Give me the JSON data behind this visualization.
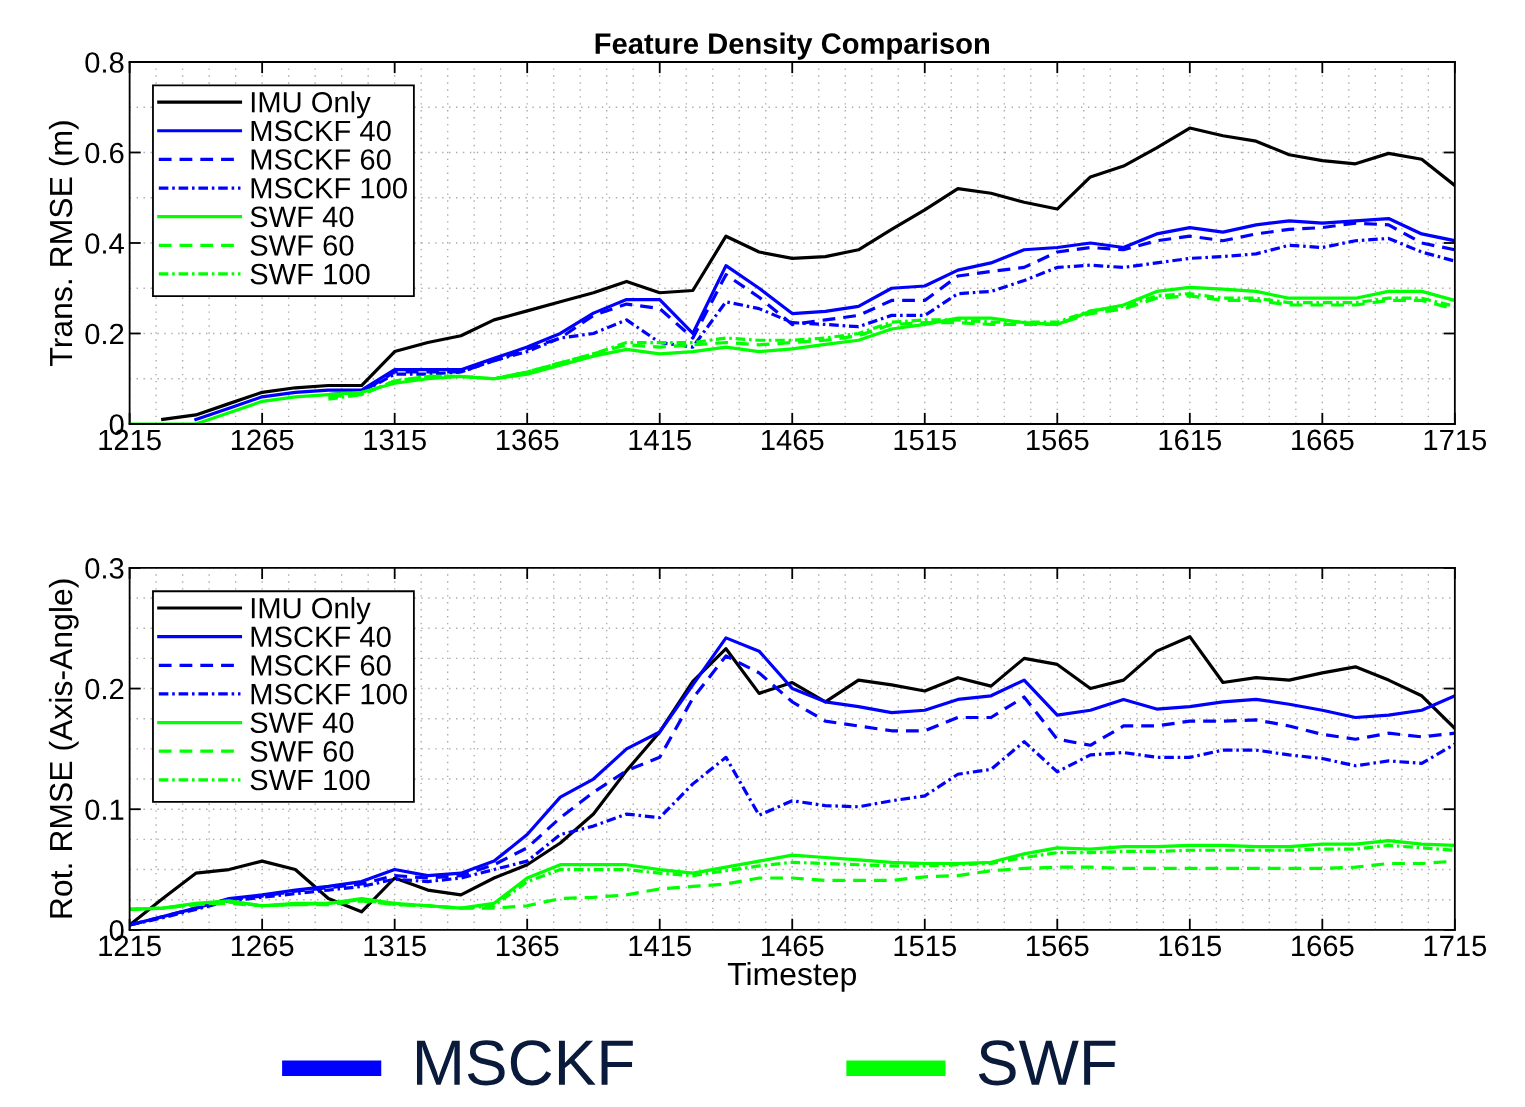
{
  "chart_data": [
    {
      "type": "line",
      "title": "Feature Density Comparison",
      "ylabel": "Trans. RMSE (m)",
      "xlim": [
        1215,
        1715
      ],
      "xticks": [
        1215,
        1265,
        1315,
        1365,
        1415,
        1465,
        1515,
        1565,
        1615,
        1665,
        1715
      ],
      "ylim": [
        0,
        0.8
      ],
      "yticks": [
        0,
        0.2,
        0.4,
        0.6,
        0.8
      ],
      "grid": true,
      "legend": "top left",
      "x": [
        1215,
        1227.5,
        1240,
        1252.5,
        1265,
        1277.5,
        1290,
        1302.5,
        1315,
        1327.5,
        1340,
        1352.5,
        1365,
        1377.5,
        1390,
        1402.5,
        1415,
        1427.5,
        1440,
        1452.5,
        1465,
        1477.5,
        1490,
        1502.5,
        1515,
        1527.5,
        1540,
        1552.5,
        1565,
        1577.5,
        1590,
        1602.5,
        1615,
        1627.5,
        1640,
        1652.5,
        1665,
        1677.5,
        1690,
        1702.5,
        1715
      ],
      "series": [
        {
          "name": "IMU Only",
          "color": "#000000",
          "line_style": "solid",
          "values": [
            null,
            0.01,
            0.02,
            0.045,
            0.07,
            0.08,
            0.085,
            0.085,
            0.16,
            0.18,
            0.195,
            0.23,
            0.25,
            0.27,
            0.29,
            0.315,
            0.29,
            0.295,
            0.415,
            0.38,
            0.366,
            0.37,
            0.385,
            0.43,
            0.473,
            0.52,
            0.51,
            0.49,
            0.475,
            0.546,
            0.57,
            0.61,
            0.654,
            0.637,
            0.625,
            0.595,
            0.582,
            0.575,
            0.598,
            0.585,
            0.527
          ]
        },
        {
          "name": "MSCKF 40",
          "color": "#0000ff",
          "line_style": "solid",
          "values": [
            null,
            null,
            0.01,
            0.035,
            0.06,
            0.07,
            0.075,
            0.075,
            0.12,
            0.12,
            0.12,
            0.145,
            0.17,
            0.2,
            0.245,
            0.275,
            0.275,
            0.2,
            0.35,
            0.3,
            0.244,
            0.249,
            0.26,
            0.3,
            0.305,
            0.34,
            0.356,
            0.385,
            0.39,
            0.4,
            0.39,
            0.42,
            0.434,
            0.424,
            0.44,
            0.449,
            0.444,
            0.449,
            0.454,
            0.42,
            0.405
          ]
        },
        {
          "name": "MSCKF 60",
          "color": "#0000ff",
          "line_style": "dashed",
          "values": [
            null,
            null,
            null,
            null,
            null,
            null,
            0.065,
            0.07,
            0.115,
            0.115,
            0.115,
            0.14,
            0.165,
            0.19,
            0.24,
            0.265,
            0.255,
            0.19,
            0.33,
            0.28,
            0.22,
            0.23,
            0.24,
            0.273,
            0.273,
            0.327,
            0.337,
            0.346,
            0.38,
            0.39,
            0.385,
            0.405,
            0.415,
            0.405,
            0.42,
            0.43,
            0.434,
            0.444,
            0.44,
            0.4,
            0.385
          ]
        },
        {
          "name": "MSCKF 100",
          "color": "#0000ff",
          "line_style": "dashdot",
          "values": [
            null,
            null,
            null,
            null,
            null,
            null,
            null,
            0.07,
            0.11,
            0.11,
            0.115,
            0.14,
            0.16,
            0.19,
            0.2,
            0.23,
            0.18,
            0.17,
            0.27,
            0.255,
            0.224,
            0.22,
            0.215,
            0.24,
            0.24,
            0.288,
            0.293,
            0.317,
            0.346,
            0.351,
            0.346,
            0.356,
            0.366,
            0.37,
            0.376,
            0.395,
            0.39,
            0.405,
            0.41,
            0.38,
            0.36
          ]
        },
        {
          "name": "SWF 40",
          "color": "#00ff00",
          "line_style": "solid",
          "values": [
            0,
            0,
            0,
            0.025,
            0.05,
            0.06,
            0.065,
            0.07,
            0.09,
            0.1,
            0.105,
            0.1,
            0.11,
            0.13,
            0.15,
            0.165,
            0.155,
            0.16,
            0.17,
            0.16,
            0.166,
            0.176,
            0.185,
            0.21,
            0.22,
            0.234,
            0.234,
            0.224,
            0.22,
            0.249,
            0.263,
            0.293,
            0.302,
            0.298,
            0.293,
            0.278,
            0.278,
            0.278,
            0.293,
            0.293,
            0.273
          ]
        },
        {
          "name": "SWF 60",
          "color": "#00ff00",
          "line_style": "dashed",
          "values": [
            null,
            null,
            null,
            null,
            null,
            null,
            0.06,
            0.065,
            0.095,
            0.105,
            0.105,
            0.1,
            0.115,
            0.135,
            0.155,
            0.175,
            0.17,
            0.175,
            0.18,
            0.175,
            0.18,
            0.185,
            0.195,
            0.22,
            0.224,
            0.224,
            0.22,
            0.22,
            0.22,
            0.244,
            0.254,
            0.278,
            0.283,
            0.273,
            0.273,
            0.263,
            0.263,
            0.263,
            0.273,
            0.273,
            0.254
          ]
        },
        {
          "name": "SWF 100",
          "color": "#00ff00",
          "line_style": "dashdot",
          "values": [
            null,
            null,
            null,
            null,
            null,
            null,
            0.055,
            0.065,
            0.095,
            0.105,
            0.105,
            0.1,
            0.115,
            0.135,
            0.155,
            0.18,
            0.18,
            0.18,
            0.19,
            0.185,
            0.185,
            0.19,
            0.2,
            0.225,
            0.23,
            0.23,
            0.225,
            0.225,
            0.225,
            0.25,
            0.26,
            0.283,
            0.288,
            0.278,
            0.278,
            0.268,
            0.268,
            0.268,
            0.278,
            0.278,
            0.26
          ]
        }
      ]
    },
    {
      "type": "line",
      "xlabel": "Timestep",
      "ylabel": "Rot. RMSE (Axis-Angle)",
      "xlim": [
        1215,
        1715
      ],
      "xticks": [
        1215,
        1265,
        1315,
        1365,
        1415,
        1465,
        1515,
        1565,
        1615,
        1665,
        1715
      ],
      "ylim": [
        0,
        0.3
      ],
      "yticks": [
        0,
        0.1,
        0.2,
        0.3
      ],
      "grid": true,
      "legend": "top left",
      "annotations": [
        "MSCKF",
        "SWF"
      ],
      "x": [
        1215,
        1227.5,
        1240,
        1252.5,
        1265,
        1277.5,
        1290,
        1302.5,
        1315,
        1327.5,
        1340,
        1352.5,
        1365,
        1377.5,
        1390,
        1402.5,
        1415,
        1427.5,
        1440,
        1452.5,
        1465,
        1477.5,
        1490,
        1502.5,
        1515,
        1527.5,
        1540,
        1552.5,
        1565,
        1577.5,
        1590,
        1602.5,
        1615,
        1627.5,
        1640,
        1652.5,
        1665,
        1677.5,
        1690,
        1702.5,
        1715
      ],
      "series": [
        {
          "name": "IMU Only",
          "color": "#000000",
          "line_style": "solid",
          "values": [
            0.004,
            0.026,
            0.047,
            0.05,
            0.057,
            0.05,
            0.026,
            0.015,
            0.043,
            0.033,
            0.029,
            0.043,
            0.054,
            0.072,
            0.096,
            0.132,
            0.164,
            0.206,
            0.233,
            0.196,
            0.205,
            0.189,
            0.207,
            0.203,
            0.198,
            0.209,
            0.202,
            0.225,
            0.22,
            0.2,
            0.207,
            0.231,
            0.243,
            0.205,
            0.209,
            0.207,
            0.213,
            0.218,
            0.207,
            0.194,
            0.167
          ]
        },
        {
          "name": "MSCKF 40",
          "color": "#0000ff",
          "line_style": "solid",
          "values": [
            0.004,
            0.011,
            0.018,
            0.026,
            0.029,
            0.033,
            0.036,
            0.04,
            0.05,
            0.045,
            0.047,
            0.057,
            0.079,
            0.11,
            0.125,
            0.15,
            0.164,
            0.203,
            0.242,
            0.231,
            0.2,
            0.189,
            0.185,
            0.18,
            0.182,
            0.191,
            0.194,
            0.207,
            0.178,
            0.182,
            0.191,
            0.183,
            0.185,
            0.189,
            0.191,
            0.187,
            0.182,
            0.176,
            0.178,
            0.182,
            0.194
          ]
        },
        {
          "name": "MSCKF 60",
          "color": "#0000ff",
          "line_style": "dashed",
          "values": [
            0.004,
            0.011,
            0.018,
            0.025,
            0.028,
            0.032,
            0.035,
            0.038,
            0.045,
            0.043,
            0.045,
            0.054,
            0.068,
            0.093,
            0.114,
            0.132,
            0.143,
            0.192,
            0.227,
            0.213,
            0.189,
            0.173,
            0.169,
            0.165,
            0.165,
            0.176,
            0.176,
            0.193,
            0.158,
            0.153,
            0.169,
            0.169,
            0.173,
            0.173,
            0.174,
            0.169,
            0.162,
            0.158,
            0.163,
            0.16,
            0.163
          ]
        },
        {
          "name": "MSCKF 100",
          "color": "#0000ff",
          "line_style": "dashdot",
          "values": [
            0.004,
            0.01,
            0.017,
            0.024,
            0.027,
            0.03,
            0.033,
            0.036,
            0.042,
            0.04,
            0.043,
            0.05,
            0.057,
            0.079,
            0.086,
            0.096,
            0.093,
            0.121,
            0.143,
            0.095,
            0.107,
            0.103,
            0.102,
            0.107,
            0.111,
            0.129,
            0.133,
            0.156,
            0.131,
            0.145,
            0.147,
            0.143,
            0.143,
            0.149,
            0.149,
            0.145,
            0.142,
            0.136,
            0.14,
            0.138,
            0.154
          ]
        },
        {
          "name": "SWF 40",
          "color": "#00ff00",
          "line_style": "solid",
          "values": [
            0.017,
            0.018,
            0.022,
            0.024,
            0.02,
            0.022,
            0.022,
            0.026,
            0.022,
            0.02,
            0.018,
            0.022,
            0.043,
            0.054,
            0.054,
            0.054,
            0.05,
            0.047,
            0.052,
            0.057,
            0.062,
            0.06,
            0.058,
            0.056,
            0.055,
            0.055,
            0.056,
            0.063,
            0.068,
            0.067,
            0.069,
            0.069,
            0.07,
            0.07,
            0.069,
            0.069,
            0.071,
            0.071,
            0.074,
            0.071,
            0.07
          ]
        },
        {
          "name": "SWF 60",
          "color": "#00ff00",
          "line_style": "dashed",
          "values": [
            0.017,
            0.018,
            0.021,
            0.022,
            0.02,
            0.021,
            0.021,
            0.024,
            0.021,
            0.02,
            0.018,
            0.018,
            0.02,
            0.026,
            0.027,
            0.029,
            0.034,
            0.036,
            0.038,
            0.043,
            0.043,
            0.041,
            0.041,
            0.041,
            0.044,
            0.045,
            0.049,
            0.051,
            0.052,
            0.052,
            0.051,
            0.051,
            0.051,
            0.051,
            0.051,
            0.051,
            0.051,
            0.052,
            0.055,
            0.055,
            0.057
          ]
        },
        {
          "name": "SWF 100",
          "color": "#00ff00",
          "line_style": "dashdot",
          "values": [
            0.017,
            0.018,
            0.021,
            0.023,
            0.02,
            0.021,
            0.022,
            0.025,
            0.021,
            0.02,
            0.018,
            0.02,
            0.04,
            0.05,
            0.05,
            0.05,
            0.047,
            0.045,
            0.049,
            0.053,
            0.056,
            0.055,
            0.054,
            0.053,
            0.053,
            0.054,
            0.055,
            0.06,
            0.064,
            0.064,
            0.065,
            0.065,
            0.066,
            0.066,
            0.066,
            0.066,
            0.067,
            0.067,
            0.07,
            0.068,
            0.066
          ]
        }
      ]
    }
  ]
}
